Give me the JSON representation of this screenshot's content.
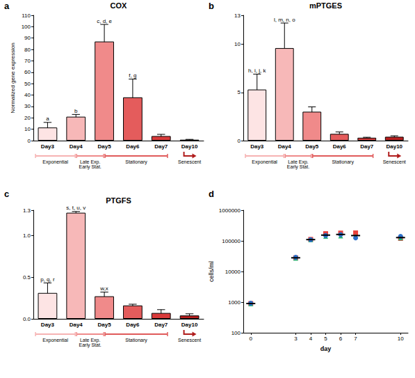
{
  "chart_data": [
    {
      "panel": "a",
      "type": "bar",
      "title": "COX",
      "y_label": "Normalized gene expression",
      "categories": [
        "Day3",
        "Day4",
        "Day5",
        "Day6",
        "Day7",
        "Day10"
      ],
      "values": [
        11.5,
        21,
        87,
        38,
        4,
        0.8
      ],
      "errors": [
        4.5,
        2,
        15,
        16,
        1.5,
        0.3
      ],
      "annotations": [
        "a",
        "b",
        "c, d, e",
        "f, g",
        null,
        null
      ],
      "colors": [
        "#fde4e4",
        "#f7b8b8",
        "#f08a8a",
        "#e45c5c",
        "#d93b3b",
        "#b81e1e"
      ],
      "ylim": [
        0,
        110
      ],
      "yticks": [
        0,
        10,
        20,
        30,
        40,
        50,
        60,
        70,
        80,
        90,
        100,
        110
      ],
      "grid": false,
      "phases": [
        {
          "label": "Exponential",
          "from": "Day3",
          "to": "Day4",
          "color": "#f6b3b3"
        },
        {
          "label": [
            "Late Exp.",
            "Early Stat."
          ],
          "from": "Day4",
          "to": "Day5",
          "color": "#ef8a8a"
        },
        {
          "label": "Stationary",
          "from": "Day5",
          "to": "Day7",
          "color": "#e05a5a"
        },
        {
          "label": "Senescent",
          "from": "Day10",
          "to": "Day10",
          "color": "#b01c1c"
        }
      ]
    },
    {
      "panel": "b",
      "type": "bar",
      "title": "mPTGES",
      "categories": [
        "Day3",
        "Day4",
        "Day5",
        "Day6",
        "Day7",
        "Day10"
      ],
      "values": [
        5.3,
        9.6,
        3.0,
        0.7,
        0.3,
        0.4
      ],
      "errors": [
        1.6,
        2.6,
        0.5,
        0.2,
        0.05,
        0.1
      ],
      "annotations": [
        "h, i, j, k",
        "l, m, n, o",
        null,
        null,
        null,
        null
      ],
      "colors": [
        "#fde4e4",
        "#f7b8b8",
        "#f08a8a",
        "#e45c5c",
        "#d93b3b",
        "#b81e1e"
      ],
      "ylim": [
        0,
        13
      ],
      "yticks": [
        0,
        5,
        10,
        13
      ],
      "grid": false,
      "phases": [
        {
          "label": "Exponential",
          "from": "Day3",
          "to": "Day4",
          "color": "#f6b3b3"
        },
        {
          "label": [
            "Late Exp.",
            "Early Stat."
          ],
          "from": "Day4",
          "to": "Day5",
          "color": "#ef8a8a"
        },
        {
          "label": "Stationary",
          "from": "Day5",
          "to": "Day7",
          "color": "#e05a5a"
        },
        {
          "label": "Senescent",
          "from": "Day10",
          "to": "Day10",
          "color": "#b01c1c"
        }
      ]
    },
    {
      "panel": "c",
      "type": "bar",
      "title": "PTGFS",
      "categories": [
        "Day3",
        "Day4",
        "Day5",
        "Day6",
        "Day7",
        "Day10"
      ],
      "values": [
        0.31,
        1.27,
        0.27,
        0.16,
        0.07,
        0.04
      ],
      "errors": [
        0.12,
        0.015,
        0.05,
        0.015,
        0.04,
        0.02
      ],
      "annotations": [
        "p, q, r",
        "s, t, u, v",
        "w,x",
        null,
        null,
        null
      ],
      "colors": [
        "#fde4e4",
        "#f7b8b8",
        "#f08a8a",
        "#e45c5c",
        "#d93b3b",
        "#b81e1e"
      ],
      "ylim": [
        0,
        1.3
      ],
      "yticks": [
        {
          "value": 0,
          "label": "0.0"
        },
        0.5,
        {
          "value": 1,
          "label": "1.0"
        },
        1.3
      ],
      "grid": false,
      "phases": [
        {
          "label": "Exponential",
          "from": "Day3",
          "to": "Day4",
          "color": "#f6b3b3"
        },
        {
          "label": [
            "Late Exp.",
            "Early Stat."
          ],
          "from": "Day4",
          "to": "Day5",
          "color": "#ef8a8a"
        },
        {
          "label": "Stationary",
          "from": "Day5",
          "to": "Day7",
          "color": "#e05a5a"
        },
        {
          "label": "Senescent",
          "from": "Day10",
          "to": "Day10",
          "color": "#b01c1c"
        }
      ]
    },
    {
      "panel": "d",
      "type": "scatter",
      "x_label": "day",
      "y_label": "cells/ml",
      "x": [
        0,
        3,
        4,
        5,
        6,
        7,
        10
      ],
      "series": [
        {
          "color": "#e8413c",
          "marker": "square",
          "values": [
            900,
            28000,
            112000,
            172000,
            180000,
            182000,
            120000
          ]
        },
        {
          "color": "#2bb673",
          "marker": "triangle",
          "values": [
            880,
            27000,
            108000,
            140000,
            145000,
            140000,
            125000
          ]
        },
        {
          "color": "#2b6fc9",
          "marker": "circle",
          "values": [
            920,
            29000,
            110000,
            150000,
            160000,
            125000,
            140000
          ]
        },
        {
          "color": "#000000",
          "marker": "dash",
          "values": [
            900,
            28000,
            110000,
            154000,
            162000,
            149000,
            128000
          ]
        }
      ],
      "log": "y",
      "xlim": [
        -0.5,
        10.5
      ],
      "xticks": [
        0,
        3,
        4,
        5,
        6,
        7,
        10
      ],
      "ylim": [
        100,
        1000000
      ],
      "yticks": [
        100,
        1000,
        10000,
        100000,
        1000000
      ],
      "grid": false
    }
  ]
}
